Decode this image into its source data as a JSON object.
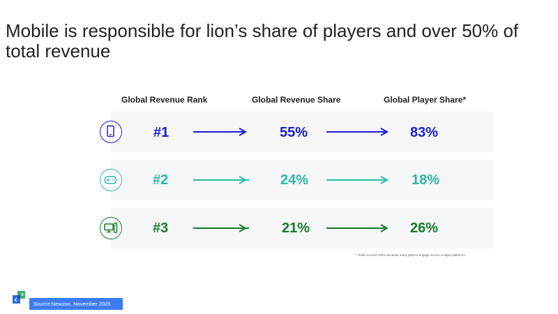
{
  "slide": {
    "title": "Mobile is responsible for lion’s share of players and over 50% of total revenue"
  },
  "table": {
    "headers": {
      "rank": "Global Revenue Rank",
      "revenue_share": "Global Revenue Share",
      "player_share": "Global Player Share*"
    },
    "rows": [
      {
        "platform_icon": "mobile-phone-icon",
        "rank": "#1",
        "revenue_share": "55%",
        "player_share": "83%",
        "color": "#1a1ad8"
      },
      {
        "platform_icon": "gamepad-icon",
        "rank": "#2",
        "revenue_share": "24%",
        "player_share": "18%",
        "color": "#2bb8a8"
      },
      {
        "platform_icon": "desktop-pc-icon",
        "rank": "#3",
        "revenue_share": "21%",
        "player_share": "26%",
        "color": "#157a2a"
      }
    ],
    "footnote": "* Totals exceed 100% because many players engage across multiple platforms"
  },
  "footer": {
    "source": "Source:Newzoo,  November  2025",
    "source_badge_color": "#3c7cf0",
    "logo_icon": "brand-logo-icon"
  }
}
